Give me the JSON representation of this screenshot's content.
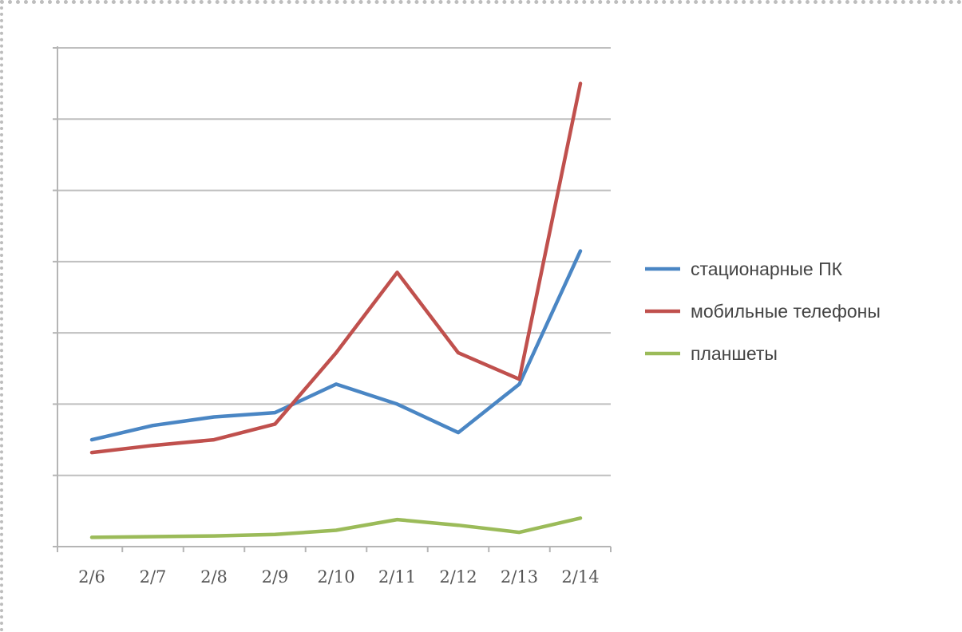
{
  "chart_data": {
    "type": "line",
    "title": "",
    "xlabel": "",
    "ylabel": "",
    "categories": [
      "2/6",
      "2/7",
      "2/8",
      "2/9",
      "2/10",
      "2/11",
      "2/12",
      "2/13",
      "2/14"
    ],
    "ylim": [
      0,
      7
    ],
    "y_gridlines": [
      1,
      2,
      3,
      4,
      5,
      6,
      7
    ],
    "y_tick_labels_visible": false,
    "grid": true,
    "legend": "right",
    "series": [
      {
        "name": "стационарные ПК",
        "color": "#4a86c4",
        "values": [
          1.5,
          1.7,
          1.82,
          1.88,
          2.28,
          2.0,
          1.6,
          2.28,
          4.15
        ]
      },
      {
        "name": "мобильные телефоны",
        "color": "#c0504d",
        "values": [
          1.32,
          1.42,
          1.5,
          1.72,
          2.72,
          3.85,
          2.72,
          2.35,
          6.5
        ]
      },
      {
        "name": "планшеты",
        "color": "#9bbb59",
        "values": [
          0.13,
          0.14,
          0.15,
          0.17,
          0.23,
          0.38,
          0.3,
          0.2,
          0.4
        ]
      }
    ]
  }
}
